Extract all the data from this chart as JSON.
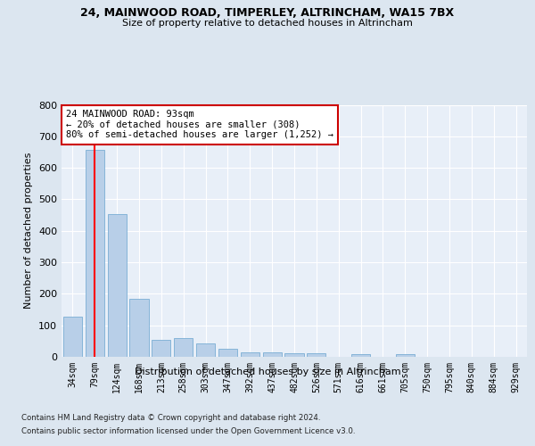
{
  "title1": "24, MAINWOOD ROAD, TIMPERLEY, ALTRINCHAM, WA15 7BX",
  "title2": "Size of property relative to detached houses in Altrincham",
  "xlabel": "Distribution of detached houses by size in Altrincham",
  "ylabel": "Number of detached properties",
  "categories": [
    "34sqm",
    "79sqm",
    "124sqm",
    "168sqm",
    "213sqm",
    "258sqm",
    "303sqm",
    "347sqm",
    "392sqm",
    "437sqm",
    "482sqm",
    "526sqm",
    "571sqm",
    "616sqm",
    "661sqm",
    "705sqm",
    "750sqm",
    "795sqm",
    "840sqm",
    "884sqm",
    "929sqm"
  ],
  "values": [
    128,
    658,
    452,
    183,
    55,
    60,
    43,
    25,
    13,
    13,
    12,
    10,
    0,
    8,
    0,
    8,
    0,
    0,
    0,
    0,
    0
  ],
  "bar_color": "#b8cfe8",
  "bar_edge_color": "#7aadd4",
  "red_line_x": 1,
  "annotation_text": "24 MAINWOOD ROAD: 93sqm\n← 20% of detached houses are smaller (308)\n80% of semi-detached houses are larger (1,252) →",
  "annotation_box_color": "#ffffff",
  "annotation_box_edge_color": "#cc0000",
  "ymax": 800,
  "yticks": [
    0,
    100,
    200,
    300,
    400,
    500,
    600,
    700,
    800
  ],
  "footer1": "Contains HM Land Registry data © Crown copyright and database right 2024.",
  "footer2": "Contains public sector information licensed under the Open Government Licence v3.0.",
  "bg_color": "#dce6f0",
  "plot_bg_color": "#e8eff8"
}
